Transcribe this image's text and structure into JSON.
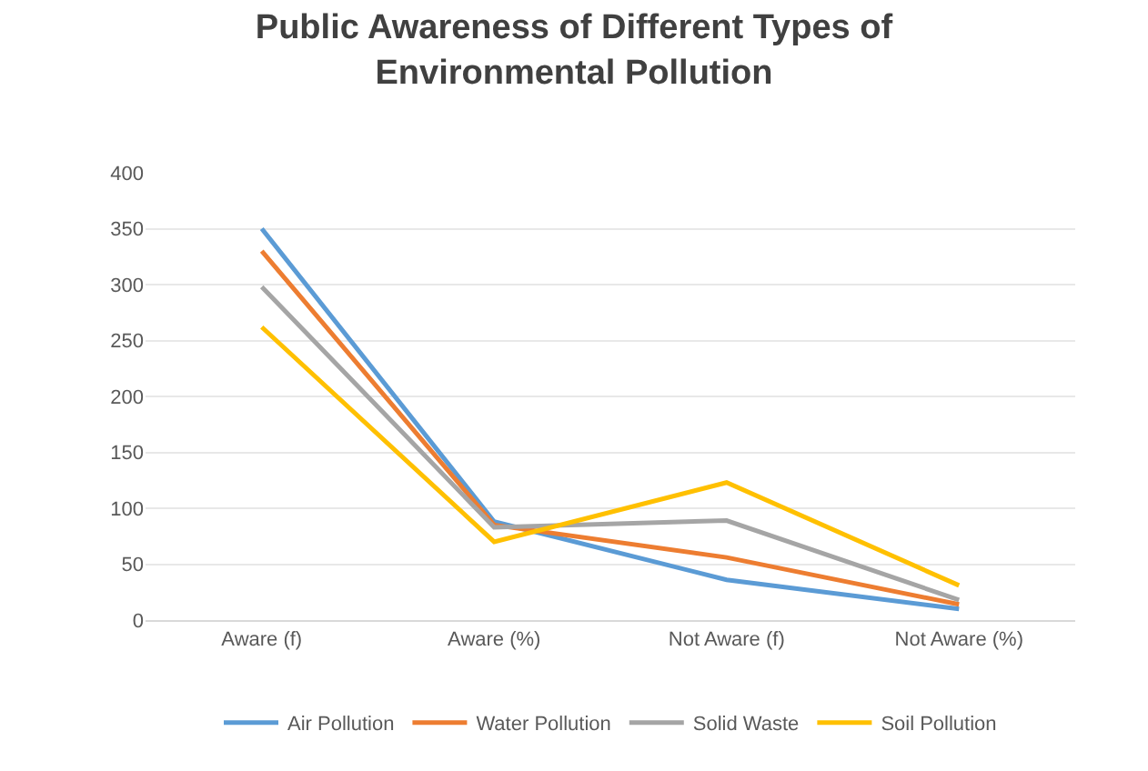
{
  "chart_data": {
    "type": "line",
    "title": "Public Awareness of Different Types of Environmental Pollution",
    "categories": [
      "Aware (f)",
      "Aware (%)",
      "Not Aware (f)",
      "Not Aware (%)"
    ],
    "series": [
      {
        "name": "Air Pollution",
        "color": "#5b9bd5",
        "values": [
          350,
          88,
          36,
          10
        ]
      },
      {
        "name": "Water Pollution",
        "color": "#ed7d31",
        "values": [
          330,
          85,
          56,
          14
        ]
      },
      {
        "name": "Solid Waste",
        "color": "#a5a5a5",
        "values": [
          298,
          83,
          89,
          18
        ]
      },
      {
        "name": "Soil Pollution",
        "color": "#ffc000",
        "values": [
          262,
          70,
          123,
          31
        ]
      }
    ],
    "ylim": [
      0,
      400
    ],
    "yticks": [
      0,
      50,
      100,
      150,
      200,
      250,
      300,
      350,
      400
    ],
    "grid": "y",
    "legend": "bottom",
    "marker": "none"
  }
}
